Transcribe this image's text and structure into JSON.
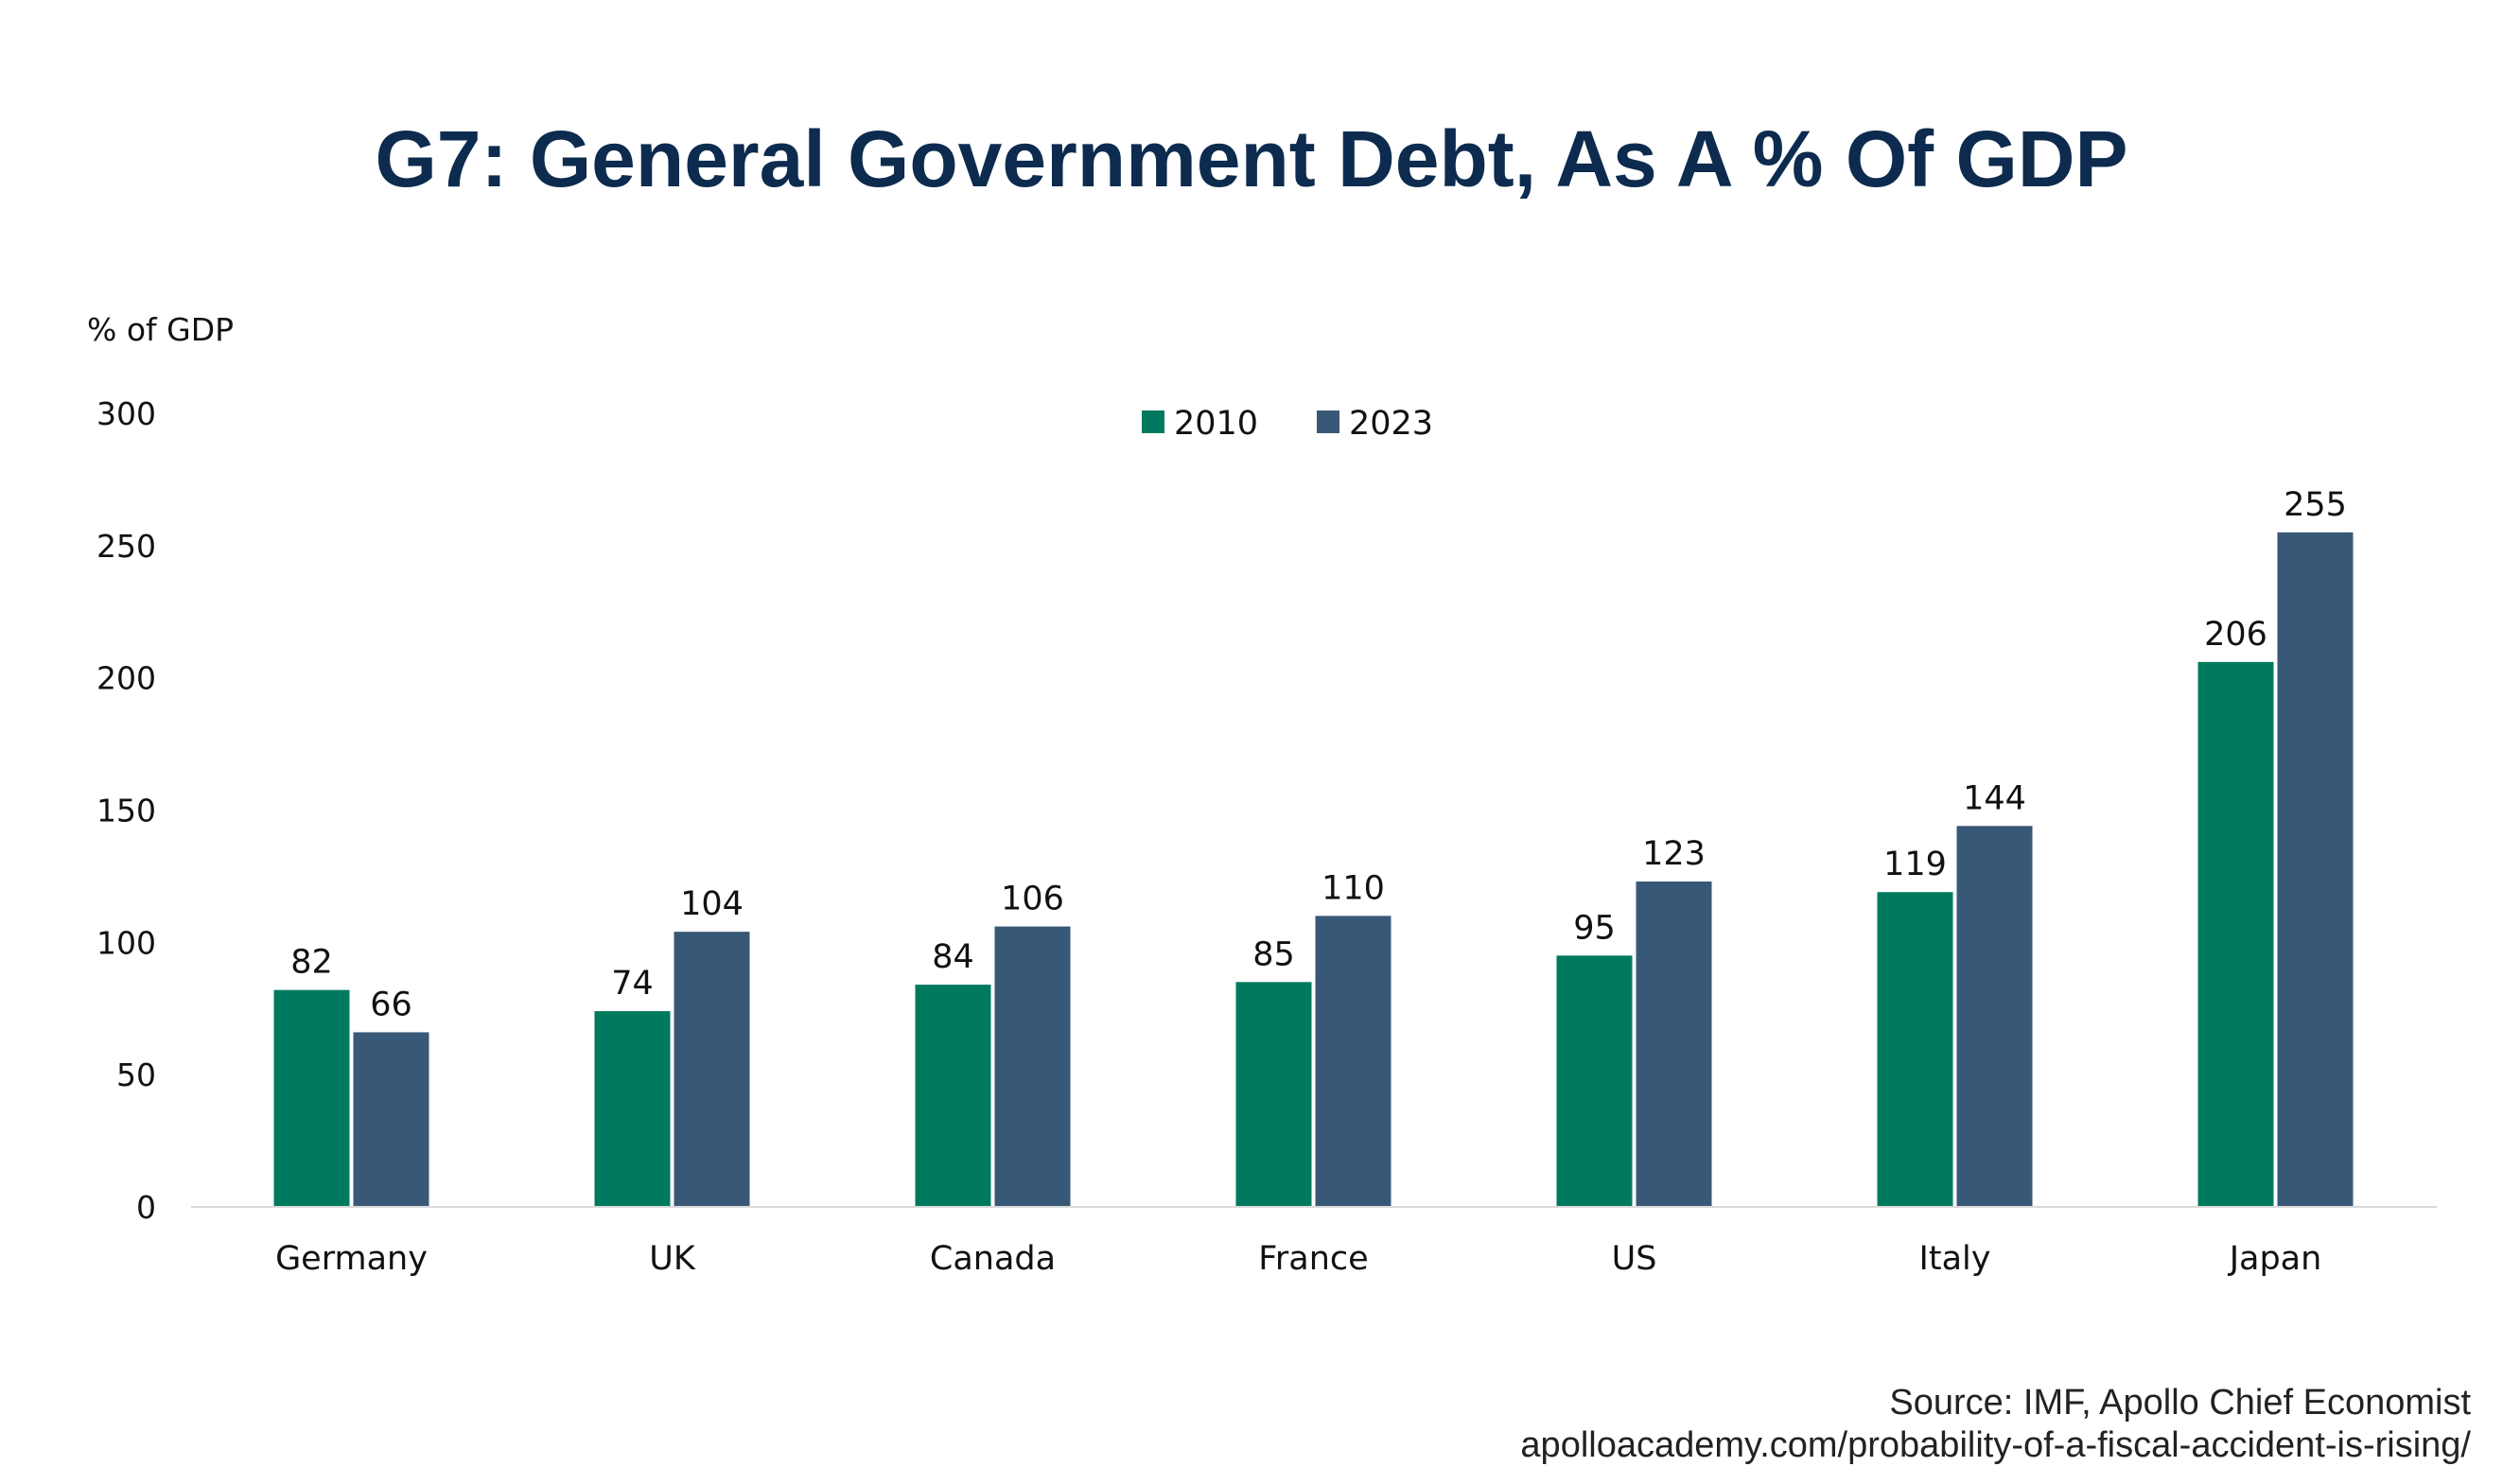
{
  "chart_data": {
    "type": "bar",
    "title": "G7: General Government Debt, As A % Of GDP",
    "ylabel": "% of GDP",
    "categories": [
      "Germany",
      "UK",
      "Canada",
      "France",
      "US",
      "Italy",
      "Japan"
    ],
    "series": [
      {
        "name": "2010",
        "color": "#007a5e",
        "values": [
          82,
          74,
          84,
          85,
          95,
          119,
          206
        ]
      },
      {
        "name": "2023",
        "color": "#385877",
        "values": [
          66,
          104,
          106,
          110,
          123,
          144,
          255
        ]
      }
    ],
    "ylim": [
      0,
      300
    ],
    "yticks": [
      "0",
      "50",
      "100",
      "150",
      "200",
      "250",
      "300"
    ],
    "grid": false,
    "legend_position": "top-center",
    "source_lines": [
      "Source: IMF, Apollo Chief Economist",
      "apolloacademy.com/probability-of-a-fiscal-accident-is-rising/"
    ]
  }
}
